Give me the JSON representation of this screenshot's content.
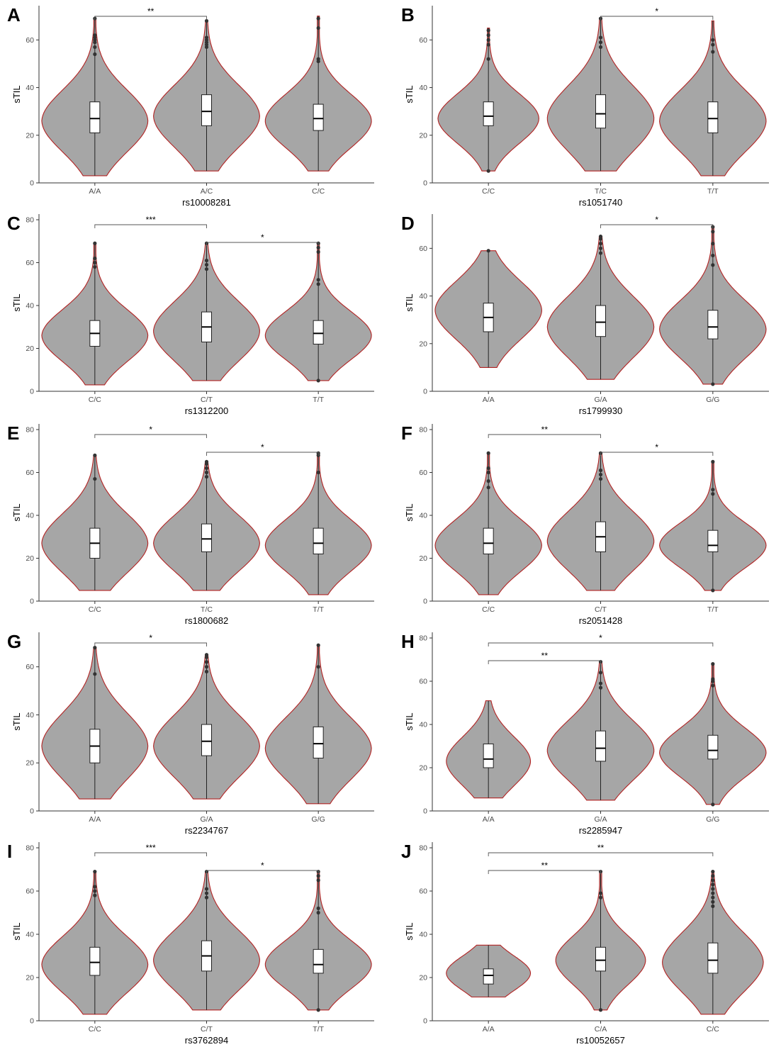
{
  "chart_data": [
    {
      "type": "violin",
      "panel": "A",
      "xlabel": "rs10008281",
      "ylabel": "sTIL",
      "ylim": [
        0,
        72
      ],
      "yticks": [
        0,
        20,
        40,
        60
      ],
      "categories": [
        "A/A",
        "A/C",
        "C/C"
      ],
      "series": [
        {
          "category": "A/A",
          "min": 3,
          "max": 69,
          "q1": 21,
          "median": 27,
          "q3": 34,
          "peak": 26,
          "peak_width": 0.95,
          "outliers": [
            54,
            57,
            59,
            60,
            61,
            62,
            69
          ]
        },
        {
          "category": "A/C",
          "min": 5,
          "max": 68,
          "q1": 24,
          "median": 30,
          "q3": 37,
          "peak": 28,
          "peak_width": 0.95,
          "outliers": [
            57,
            58,
            59,
            60,
            61,
            68
          ]
        },
        {
          "category": "C/C",
          "min": 5,
          "max": 70,
          "q1": 22,
          "median": 27,
          "q3": 33,
          "peak": 26,
          "peak_width": 0.95,
          "outliers": [
            51,
            52,
            65,
            69
          ]
        }
      ],
      "significance": [
        {
          "from": 0,
          "to": 1,
          "label": "**",
          "level": 0
        }
      ]
    },
    {
      "type": "violin",
      "panel": "B",
      "xlabel": "rs1051740",
      "ylabel": "sTIL",
      "ylim": [
        0,
        72
      ],
      "yticks": [
        0,
        20,
        40,
        60
      ],
      "categories": [
        "C/C",
        "T/C",
        "T/T"
      ],
      "series": [
        {
          "category": "C/C",
          "min": 5,
          "max": 65,
          "q1": 24,
          "median": 28,
          "q3": 34,
          "peak": 27,
          "peak_width": 0.9,
          "outliers": [
            5,
            52,
            58,
            60,
            62,
            64
          ]
        },
        {
          "category": "T/C",
          "min": 5,
          "max": 69,
          "q1": 23,
          "median": 29,
          "q3": 37,
          "peak": 27,
          "peak_width": 0.95,
          "outliers": [
            57,
            59,
            61,
            69
          ]
        },
        {
          "category": "T/T",
          "min": 3,
          "max": 68,
          "q1": 21,
          "median": 27,
          "q3": 34,
          "peak": 26,
          "peak_width": 0.95,
          "outliers": [
            55,
            58,
            60
          ]
        }
      ],
      "significance": [
        {
          "from": 1,
          "to": 2,
          "label": "*",
          "level": 0
        }
      ]
    },
    {
      "type": "violin",
      "panel": "C",
      "xlabel": "rs1312200",
      "ylabel": "sTIL",
      "ylim": [
        0,
        80
      ],
      "yticks": [
        0,
        20,
        40,
        60,
        80
      ],
      "categories": [
        "C/C",
        "C/T",
        "T/T"
      ],
      "series": [
        {
          "category": "C/C",
          "min": 3,
          "max": 69,
          "q1": 21,
          "median": 27,
          "q3": 33,
          "peak": 26,
          "peak_width": 0.95,
          "outliers": [
            58,
            60,
            62,
            69
          ]
        },
        {
          "category": "C/T",
          "min": 5,
          "max": 69,
          "q1": 23,
          "median": 30,
          "q3": 37,
          "peak": 28,
          "peak_width": 0.95,
          "outliers": [
            57,
            59,
            61,
            69
          ]
        },
        {
          "category": "T/T",
          "min": 5,
          "max": 69,
          "q1": 22,
          "median": 27,
          "q3": 33,
          "peak": 26,
          "peak_width": 0.95,
          "outliers": [
            5,
            50,
            52,
            65,
            67,
            69
          ]
        }
      ],
      "significance": [
        {
          "from": 0,
          "to": 1,
          "label": "***",
          "level": 1
        },
        {
          "from": 1,
          "to": 2,
          "label": "*",
          "level": 0
        }
      ]
    },
    {
      "type": "violin",
      "panel": "D",
      "xlabel": "rs1799930",
      "ylabel": "sTIL",
      "ylim": [
        0,
        72
      ],
      "yticks": [
        0,
        20,
        40,
        60
      ],
      "categories": [
        "A/A",
        "G/A",
        "G/G"
      ],
      "series": [
        {
          "category": "A/A",
          "min": 10,
          "max": 59,
          "q1": 25,
          "median": 31,
          "q3": 37,
          "peak": 34,
          "peak_width": 0.95,
          "outliers": [
            59
          ]
        },
        {
          "category": "G/A",
          "min": 5,
          "max": 65,
          "q1": 23,
          "median": 29,
          "q3": 36,
          "peak": 27,
          "peak_width": 0.95,
          "outliers": [
            58,
            60,
            62,
            64,
            65
          ]
        },
        {
          "category": "G/G",
          "min": 3,
          "max": 69,
          "q1": 22,
          "median": 27,
          "q3": 34,
          "peak": 26,
          "peak_width": 0.95,
          "outliers": [
            3,
            53,
            57,
            62,
            67,
            69
          ]
        }
      ],
      "significance": [
        {
          "from": 1,
          "to": 2,
          "label": "*",
          "level": 0
        }
      ]
    },
    {
      "type": "violin",
      "panel": "E",
      "xlabel": "rs1800682",
      "ylabel": "sTIL",
      "ylim": [
        0,
        80
      ],
      "yticks": [
        0,
        20,
        40,
        60,
        80
      ],
      "categories": [
        "C/C",
        "T/C",
        "T/T"
      ],
      "series": [
        {
          "category": "C/C",
          "min": 5,
          "max": 68,
          "q1": 20,
          "median": 27,
          "q3": 34,
          "peak": 27,
          "peak_width": 0.95,
          "outliers": [
            57,
            68
          ]
        },
        {
          "category": "T/C",
          "min": 5,
          "max": 65,
          "q1": 23,
          "median": 29,
          "q3": 36,
          "peak": 27,
          "peak_width": 0.95,
          "outliers": [
            58,
            60,
            62,
            64,
            65
          ]
        },
        {
          "category": "T/T",
          "min": 3,
          "max": 69,
          "q1": 22,
          "median": 27,
          "q3": 34,
          "peak": 26,
          "peak_width": 0.95,
          "outliers": [
            60,
            68,
            69
          ]
        }
      ],
      "significance": [
        {
          "from": 0,
          "to": 1,
          "label": "*",
          "level": 1
        },
        {
          "from": 1,
          "to": 2,
          "label": "*",
          "level": 0
        }
      ]
    },
    {
      "type": "violin",
      "panel": "F",
      "xlabel": "rs2051428",
      "ylabel": "sTIL",
      "ylim": [
        0,
        80
      ],
      "yticks": [
        0,
        20,
        40,
        60,
        80
      ],
      "categories": [
        "C/C",
        "C/T",
        "T/T"
      ],
      "series": [
        {
          "category": "C/C",
          "min": 3,
          "max": 69,
          "q1": 22,
          "median": 27,
          "q3": 34,
          "peak": 26,
          "peak_width": 0.95,
          "outliers": [
            53,
            56,
            60,
            62,
            69
          ]
        },
        {
          "category": "C/T",
          "min": 5,
          "max": 69,
          "q1": 23,
          "median": 30,
          "q3": 37,
          "peak": 28,
          "peak_width": 0.95,
          "outliers": [
            57,
            59,
            61,
            69
          ]
        },
        {
          "category": "T/T",
          "min": 5,
          "max": 65,
          "q1": 23,
          "median": 26,
          "q3": 33,
          "peak": 26,
          "peak_width": 0.95,
          "outliers": [
            5,
            50,
            52,
            65
          ]
        }
      ],
      "significance": [
        {
          "from": 0,
          "to": 1,
          "label": "**",
          "level": 1
        },
        {
          "from": 1,
          "to": 2,
          "label": "*",
          "level": 0
        }
      ]
    },
    {
      "type": "violin",
      "panel": "G",
      "xlabel": "rs2234767",
      "ylabel": "sTIL",
      "ylim": [
        0,
        72
      ],
      "yticks": [
        0,
        20,
        40,
        60
      ],
      "categories": [
        "A/A",
        "G/A",
        "G/G"
      ],
      "series": [
        {
          "category": "A/A",
          "min": 5,
          "max": 68,
          "q1": 20,
          "median": 27,
          "q3": 34,
          "peak": 27,
          "peak_width": 0.95,
          "outliers": [
            57,
            68
          ]
        },
        {
          "category": "G/A",
          "min": 5,
          "max": 65,
          "q1": 23,
          "median": 29,
          "q3": 36,
          "peak": 27,
          "peak_width": 0.95,
          "outliers": [
            58,
            60,
            62,
            64,
            65
          ]
        },
        {
          "category": "G/G",
          "min": 3,
          "max": 69,
          "q1": 22,
          "median": 28,
          "q3": 35,
          "peak": 26,
          "peak_width": 0.95,
          "outliers": [
            60,
            69
          ]
        }
      ],
      "significance": [
        {
          "from": 0,
          "to": 1,
          "label": "*",
          "level": 0
        }
      ]
    },
    {
      "type": "violin",
      "panel": "H",
      "xlabel": "rs2285947",
      "ylabel": "sTIL",
      "ylim": [
        0,
        80
      ],
      "yticks": [
        0,
        20,
        40,
        60,
        80
      ],
      "categories": [
        "A/A",
        "G/A",
        "G/G"
      ],
      "series": [
        {
          "category": "A/A",
          "min": 6,
          "max": 51,
          "q1": 20,
          "median": 24,
          "q3": 31,
          "peak": 23,
          "peak_width": 0.75,
          "outliers": []
        },
        {
          "category": "G/A",
          "min": 5,
          "max": 69,
          "q1": 23,
          "median": 29,
          "q3": 37,
          "peak": 28,
          "peak_width": 0.95,
          "outliers": [
            57,
            59,
            64,
            69
          ]
        },
        {
          "category": "G/G",
          "min": 3,
          "max": 68,
          "q1": 24,
          "median": 28,
          "q3": 35,
          "peak": 27,
          "peak_width": 0.95,
          "outliers": [
            3,
            58,
            60,
            61,
            68
          ]
        }
      ],
      "significance": [
        {
          "from": 0,
          "to": 1,
          "label": "**",
          "level": 0
        },
        {
          "from": 0,
          "to": 2,
          "label": "*",
          "level": 1
        }
      ]
    },
    {
      "type": "violin",
      "panel": "I",
      "xlabel": "rs3762894",
      "ylabel": "sTIL",
      "ylim": [
        0,
        80
      ],
      "yticks": [
        0,
        20,
        40,
        60,
        80
      ],
      "categories": [
        "C/C",
        "C/T",
        "T/T"
      ],
      "series": [
        {
          "category": "C/C",
          "min": 3,
          "max": 69,
          "q1": 21,
          "median": 27,
          "q3": 34,
          "peak": 26,
          "peak_width": 0.95,
          "outliers": [
            58,
            60,
            62,
            69
          ]
        },
        {
          "category": "C/T",
          "min": 5,
          "max": 69,
          "q1": 23,
          "median": 30,
          "q3": 37,
          "peak": 28,
          "peak_width": 0.95,
          "outliers": [
            57,
            59,
            61,
            69
          ]
        },
        {
          "category": "T/T",
          "min": 5,
          "max": 69,
          "q1": 22,
          "median": 26,
          "q3": 33,
          "peak": 26,
          "peak_width": 0.95,
          "outliers": [
            5,
            50,
            52,
            65,
            67,
            69
          ]
        }
      ],
      "significance": [
        {
          "from": 0,
          "to": 1,
          "label": "***",
          "level": 1
        },
        {
          "from": 1,
          "to": 2,
          "label": "*",
          "level": 0
        }
      ]
    },
    {
      "type": "violin",
      "panel": "J",
      "xlabel": "rs10052657",
      "ylabel": "sTIL",
      "ylim": [
        0,
        80
      ],
      "yticks": [
        0,
        20,
        40,
        60,
        80
      ],
      "categories": [
        "A/A",
        "C/A",
        "C/C"
      ],
      "series": [
        {
          "category": "A/A",
          "min": 11,
          "max": 35,
          "q1": 17,
          "median": 21,
          "q3": 24,
          "peak": 22,
          "peak_width": 0.75,
          "outliers": []
        },
        {
          "category": "C/A",
          "min": 5,
          "max": 69,
          "q1": 23,
          "median": 28,
          "q3": 34,
          "peak": 28,
          "peak_width": 0.8,
          "outliers": [
            5,
            57,
            59,
            69
          ]
        },
        {
          "category": "C/C",
          "min": 3,
          "max": 69,
          "q1": 22,
          "median": 28,
          "q3": 36,
          "peak": 27,
          "peak_width": 0.9,
          "outliers": [
            53,
            55,
            57,
            59,
            61,
            63,
            65,
            67,
            69
          ]
        }
      ],
      "significance": [
        {
          "from": 0,
          "to": 1,
          "label": "**",
          "level": 0
        },
        {
          "from": 0,
          "to": 2,
          "label": "**",
          "level": 1
        }
      ]
    }
  ],
  "colors": {
    "violin_fill": "#a6a6a6",
    "violin_outline": "#b22222",
    "box_fill": "#ffffff",
    "points": "#333333",
    "axis": "#333333",
    "tick_text": "#4d4d4d"
  }
}
